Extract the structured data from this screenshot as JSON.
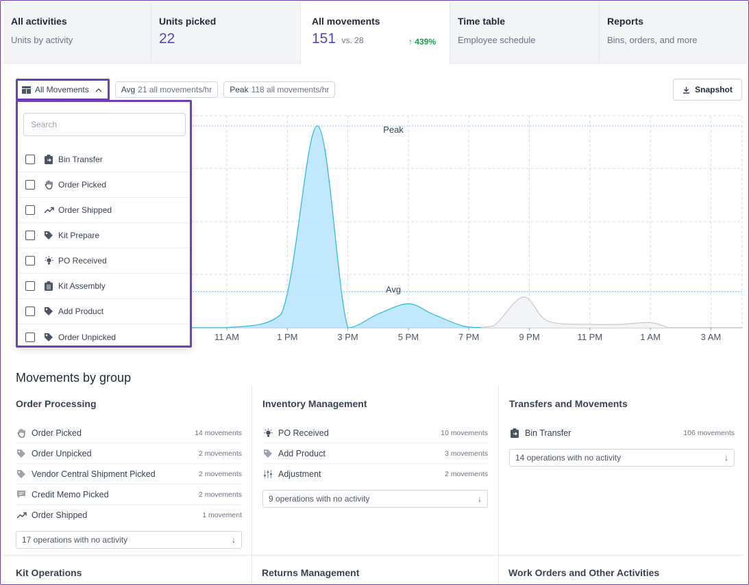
{
  "tabs": [
    {
      "title": "All activities",
      "sub": "Units by activity"
    },
    {
      "title": "Units picked",
      "value": "22"
    },
    {
      "title": "All movements",
      "value": "151",
      "vs": "vs. 28",
      "delta": "439%"
    },
    {
      "title": "Time table",
      "sub": "Employee schedule"
    },
    {
      "title": "Reports",
      "sub": "Bins, orders, and more"
    }
  ],
  "toolbar": {
    "filter_label": "All Movements",
    "avg_label": "Avg",
    "avg_value": "21 all movements/hr",
    "peak_label": "Peak",
    "peak_value": "118 all movements/hr",
    "snapshot_label": "Snapshot"
  },
  "dropdown": {
    "search_placeholder": "Search",
    "options": [
      {
        "label": "Bin Transfer",
        "icon": "clipboard-transfer-icon"
      },
      {
        "label": "Order Picked",
        "icon": "hand-icon"
      },
      {
        "label": "Order Shipped",
        "icon": "trending-up-icon"
      },
      {
        "label": "Kit Prepare",
        "icon": "tag-icon"
      },
      {
        "label": "PO Received",
        "icon": "lightbulb-icon"
      },
      {
        "label": "Kit Assembly",
        "icon": "clipboard-list-icon"
      },
      {
        "label": "Add Product",
        "icon": "tag-icon"
      },
      {
        "label": "Order Unpicked",
        "icon": "tag-icon"
      }
    ]
  },
  "chart_data": {
    "type": "area",
    "x_ticks": [
      "11 AM",
      "1 PM",
      "3 PM",
      "5 PM",
      "7 PM",
      "9 PM",
      "11 PM",
      "1 AM",
      "3 AM"
    ],
    "annotations": [
      {
        "label": "Peak",
        "value": 118
      },
      {
        "label": "Avg",
        "value": 21
      }
    ],
    "series": [
      {
        "color": "#7dd3fc",
        "points": [
          [
            -1,
            0
          ],
          [
            0,
            0
          ],
          [
            0.9,
            8
          ],
          [
            1.5,
            118
          ],
          [
            2.0,
            0
          ],
          [
            2.5,
            8
          ],
          [
            3.0,
            14
          ],
          [
            3.4,
            8
          ],
          [
            3.9,
            1
          ],
          [
            4.2,
            0
          ]
        ]
      },
      {
        "color": "#d1d5db",
        "points": [
          [
            4.0,
            0
          ],
          [
            4.4,
            1
          ],
          [
            4.9,
            18
          ],
          [
            5.3,
            4
          ],
          [
            6.0,
            2
          ],
          [
            6.5,
            2
          ],
          [
            7.0,
            3
          ],
          [
            7.3,
            0
          ]
        ]
      }
    ],
    "grid": true
  },
  "section_title": "Movements by group",
  "groups": [
    {
      "title": "Order Processing",
      "rows": [
        {
          "label": "Order Picked",
          "count": "14 movements",
          "icon": "hand-icon"
        },
        {
          "label": "Order Unpicked",
          "count": "2 movements",
          "icon": "tag-icon"
        },
        {
          "label": "Vendor Central Shipment Picked",
          "count": "2 movements",
          "icon": "tag-icon"
        },
        {
          "label": "Credit Memo Picked",
          "count": "2 movements",
          "icon": "message-icon"
        },
        {
          "label": "Order Shipped",
          "count": "1 movement",
          "icon": "trending-up-icon"
        }
      ],
      "no_activity": "17 operations with no activity"
    },
    {
      "title": "Inventory Management",
      "rows": [
        {
          "label": "PO Received",
          "count": "10 movements",
          "icon": "lightbulb-icon"
        },
        {
          "label": "Add Product",
          "count": "3 movements",
          "icon": "tag-icon"
        },
        {
          "label": "Adjustment",
          "count": "2 movements",
          "icon": "sliders-icon"
        }
      ],
      "no_activity": "9 operations with no activity"
    },
    {
      "title": "Transfers and Movements",
      "rows": [
        {
          "label": "Bin Transfer",
          "count": "106 movements",
          "icon": "clipboard-transfer-icon"
        }
      ],
      "no_activity": "14 operations with no activity"
    }
  ],
  "bottom_groups": [
    "Kit Operations",
    "Returns Management",
    "Work Orders and Other Activities"
  ]
}
